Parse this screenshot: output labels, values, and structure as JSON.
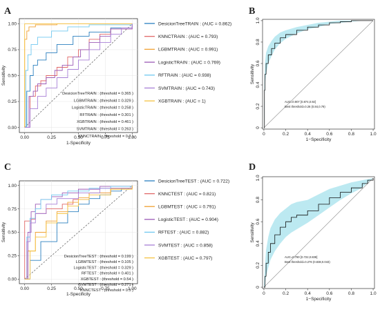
{
  "chart_data": [
    {
      "panel": "A",
      "type": "line",
      "xlabel": "1-Specificity",
      "ylabel": "Sensitivity",
      "xlim": [
        0,
        1
      ],
      "ylim": [
        0,
        1
      ],
      "xticks": [
        "0.00",
        "0.25",
        "0.50",
        "0.75",
        "1.00"
      ],
      "yticks": [
        "0.00",
        "0.25",
        "0.50",
        "0.75",
        "1.00"
      ],
      "grid": true,
      "legend_placement": "right",
      "series": [
        {
          "name": "DesicionTreeTRAIN : (AUC = 0.862)",
          "color": "#2a7fbf",
          "x": [
            0,
            0.02,
            0.05,
            0.08,
            0.12,
            0.2,
            0.3,
            0.45,
            0.6,
            0.8,
            1
          ],
          "y": [
            0,
            0.35,
            0.5,
            0.6,
            0.65,
            0.72,
            0.8,
            0.88,
            0.92,
            0.96,
            1
          ]
        },
        {
          "name": "KNNCTRAIN : (AUC = 0.793)",
          "color": "#e06666",
          "x": [
            0,
            0.05,
            0.1,
            0.15,
            0.2,
            0.3,
            0.4,
            0.5,
            0.6,
            0.7,
            0.8,
            1
          ],
          "y": [
            0,
            0.3,
            0.4,
            0.45,
            0.5,
            0.58,
            0.68,
            0.75,
            0.85,
            0.9,
            0.95,
            1
          ]
        },
        {
          "name": "LGBMTRAIN : (AUC = 0.991)",
          "color": "#f0a030",
          "x": [
            0,
            0,
            0.02,
            0.04,
            0.1,
            0.3,
            1
          ],
          "y": [
            0,
            0.85,
            0.93,
            0.97,
            0.99,
            1,
            1
          ]
        },
        {
          "name": "LogisticTRAIN : (AUC = 0.769)",
          "color": "#9b59b6",
          "x": [
            0,
            0.04,
            0.08,
            0.12,
            0.2,
            0.28,
            0.35,
            0.45,
            0.52,
            0.6,
            0.7,
            0.8,
            1
          ],
          "y": [
            0,
            0.3,
            0.35,
            0.42,
            0.48,
            0.55,
            0.6,
            0.68,
            0.75,
            0.82,
            0.88,
            0.95,
            1
          ]
        },
        {
          "name": "RFTRAIN : (AUC = 0.938)",
          "color": "#6fc8f0",
          "x": [
            0,
            0.01,
            0.03,
            0.06,
            0.12,
            0.25,
            0.4,
            0.6,
            1
          ],
          "y": [
            0,
            0.55,
            0.7,
            0.8,
            0.87,
            0.93,
            0.97,
            0.99,
            1
          ]
        },
        {
          "name": "SVMTRAIN : (AUC = 0.743)",
          "color": "#a77fd6",
          "x": [
            0,
            0.05,
            0.12,
            0.2,
            0.3,
            0.4,
            0.5,
            0.6,
            0.7,
            0.8,
            0.9,
            1
          ],
          "y": [
            0,
            0.18,
            0.3,
            0.38,
            0.48,
            0.56,
            0.65,
            0.75,
            0.82,
            0.9,
            0.96,
            1
          ]
        },
        {
          "name": "XGBTRAIN : (AUC = 1)",
          "color": "#f5c242",
          "x": [
            0,
            0,
            1
          ],
          "y": [
            0,
            1,
            1
          ]
        }
      ],
      "annotations": [
        "DesicionTreeTRAIN : (threshold = 0.365 )",
        "LGBMTRAIN : (threshold = 0.329 )",
        "LogisticTRAIN : (threshold = 0.258 )",
        "RFTRAIN : (threshold = 0.301 )",
        "XGBTRAIN : (threshold = 0.461 )",
        "SVMTRAIN : (threshold = 0.263 )",
        "KNNCTRAIN : (threshold = 0.3 )"
      ]
    },
    {
      "panel": "B",
      "type": "line",
      "xlabel": "1−Specificity",
      "ylabel": "Sensitivity",
      "xlim": [
        0,
        1
      ],
      "ylim": [
        0,
        1
      ],
      "xticks": [
        "0",
        "0.2",
        "0.4",
        "0.6",
        "0.8",
        "1.0"
      ],
      "yticks": [
        "0",
        "0.2",
        "0.4",
        "0.6",
        "0.8",
        "1.0"
      ],
      "grid": false,
      "series": [
        {
          "name": "",
          "color": "#111111",
          "x": [
            0,
            0.005,
            0.01,
            0.02,
            0.04,
            0.07,
            0.1,
            0.15,
            0.2,
            0.3,
            0.4,
            0.5,
            0.6,
            0.7,
            0.8,
            0.9,
            1
          ],
          "y": [
            0,
            0.35,
            0.5,
            0.6,
            0.68,
            0.74,
            0.79,
            0.84,
            0.87,
            0.91,
            0.94,
            0.96,
            0.98,
            0.99,
            1,
            1,
            1
          ],
          "band_lower": [
            0,
            0.25,
            0.4,
            0.5,
            0.6,
            0.67,
            0.73,
            0.79,
            0.83,
            0.88,
            0.92,
            0.94,
            0.97,
            0.98,
            0.99,
            1,
            1
          ],
          "band_upper": [
            0,
            0.45,
            0.6,
            0.7,
            0.76,
            0.81,
            0.85,
            0.89,
            0.91,
            0.94,
            0.96,
            0.98,
            0.99,
            1,
            1,
            1,
            1
          ]
        }
      ],
      "band_color": "#a6e1ec",
      "annotations": [
        "AUC=0.907 [0.874,0.92]",
        "Best threshold=0.26 (0.84,0.79)"
      ]
    },
    {
      "panel": "C",
      "type": "line",
      "xlabel": "1-Specificity",
      "ylabel": "Sensitivity",
      "xlim": [
        0,
        1
      ],
      "ylim": [
        0,
        1
      ],
      "xticks": [
        "0.00",
        "0.25",
        "0.50",
        "0.75",
        "1.00"
      ],
      "yticks": [
        "0.00",
        "0.25",
        "0.50",
        "0.75",
        "1.00"
      ],
      "grid": true,
      "legend_placement": "right",
      "series": [
        {
          "name": "DesicionTreeTEST : (AUC = 0.722)",
          "color": "#2a7fbf",
          "x": [
            0,
            0.05,
            0.15,
            0.3,
            0.4,
            0.5,
            0.6,
            0.7,
            0.8,
            0.9,
            1
          ],
          "y": [
            0,
            0.2,
            0.4,
            0.6,
            0.72,
            0.8,
            0.86,
            0.9,
            0.94,
            0.97,
            1
          ]
        },
        {
          "name": "KNNCTEST : (AUC = 0.821)",
          "color": "#e06666",
          "x": [
            0,
            0,
            0.06,
            0.1,
            0.2,
            0.35,
            0.45,
            0.6,
            0.8,
            1
          ],
          "y": [
            0,
            0.62,
            0.64,
            0.7,
            0.75,
            0.8,
            0.85,
            0.92,
            0.97,
            1
          ]
        },
        {
          "name": "LGBMTEST : (AUC = 0.791)",
          "color": "#f0a030",
          "x": [
            0,
            0.03,
            0.1,
            0.2,
            0.3,
            0.4,
            0.5,
            0.6,
            0.8,
            1
          ],
          "y": [
            0,
            0.3,
            0.5,
            0.62,
            0.72,
            0.82,
            0.87,
            0.92,
            0.97,
            1
          ]
        },
        {
          "name": "LogisticTEST : (AUC = 0.904)",
          "color": "#9b59b6",
          "x": [
            0,
            0.03,
            0.06,
            0.1,
            0.15,
            0.25,
            0.35,
            0.5,
            0.7,
            1
          ],
          "y": [
            0,
            0.5,
            0.72,
            0.8,
            0.85,
            0.88,
            0.92,
            0.96,
            0.99,
            1
          ]
        },
        {
          "name": "RFTEST : (AUC = 0.882)",
          "color": "#6fc8f0",
          "x": [
            0,
            0.02,
            0.05,
            0.1,
            0.15,
            0.25,
            0.4,
            0.6,
            0.8,
            1
          ],
          "y": [
            0,
            0.45,
            0.65,
            0.75,
            0.85,
            0.9,
            0.94,
            0.97,
            0.99,
            1
          ]
        },
        {
          "name": "SVMTEST : (AUC = 0.858)",
          "color": "#a77fd6",
          "x": [
            0,
            0.02,
            0.05,
            0.1,
            0.2,
            0.3,
            0.5,
            0.7,
            1
          ],
          "y": [
            0,
            0.4,
            0.6,
            0.7,
            0.8,
            0.86,
            0.92,
            0.97,
            1
          ]
        },
        {
          "name": "XGBTEST : (AUC = 0.797)",
          "color": "#f5c242",
          "x": [
            0,
            0.05,
            0.1,
            0.2,
            0.3,
            0.4,
            0.5,
            0.6,
            0.8,
            1
          ],
          "y": [
            0,
            0.3,
            0.45,
            0.6,
            0.7,
            0.78,
            0.85,
            0.9,
            0.96,
            1
          ]
        }
      ],
      "annotations": [
        "DesicionTreeTEST : (threshold = 0.199 )",
        "LGBMTEST : (threshold = 0.105 )",
        "LogisticTEST : (threshold = 0.329 )",
        "RFTEST : (threshold = 0.401 )",
        "XGBTEST : (threshold = 0.54 )",
        "SVMTEST : (threshold = 0.271 )",
        "KNNCTEST : (threshold = 0.5 )"
      ]
    },
    {
      "panel": "D",
      "type": "line",
      "xlabel": "1−Specificity",
      "ylabel": "Sensitivity",
      "xlim": [
        0,
        1
      ],
      "ylim": [
        0,
        1
      ],
      "xticks": [
        "0",
        "0.2",
        "0.4",
        "0.6",
        "0.8",
        "1.0"
      ],
      "yticks": [
        "0",
        "0.2",
        "0.4",
        "0.6",
        "0.8",
        "1.0"
      ],
      "grid": false,
      "series": [
        {
          "name": "",
          "color": "#111111",
          "x": [
            0,
            0.01,
            0.02,
            0.04,
            0.06,
            0.1,
            0.15,
            0.2,
            0.25,
            0.3,
            0.4,
            0.5,
            0.6,
            0.7,
            0.8,
            0.9,
            0.95,
            1
          ],
          "y": [
            0,
            0.1,
            0.22,
            0.32,
            0.4,
            0.48,
            0.55,
            0.6,
            0.64,
            0.66,
            0.7,
            0.76,
            0.82,
            0.87,
            0.91,
            0.95,
            0.98,
            1
          ],
          "band_lower": [
            0,
            0.02,
            0.1,
            0.18,
            0.25,
            0.33,
            0.4,
            0.46,
            0.5,
            0.53,
            0.59,
            0.66,
            0.73,
            0.8,
            0.86,
            0.91,
            0.96,
            1
          ],
          "band_upper": [
            0,
            0.2,
            0.34,
            0.46,
            0.54,
            0.62,
            0.68,
            0.72,
            0.76,
            0.78,
            0.8,
            0.85,
            0.9,
            0.93,
            0.96,
            0.98,
            0.99,
            1
          ]
        }
      ],
      "band_color": "#a6e1ec",
      "annotations": [
        "AUC=0.780 [0.722,0.838]",
        "Best threshold=0.276 (0.838,0.043)"
      ]
    }
  ]
}
